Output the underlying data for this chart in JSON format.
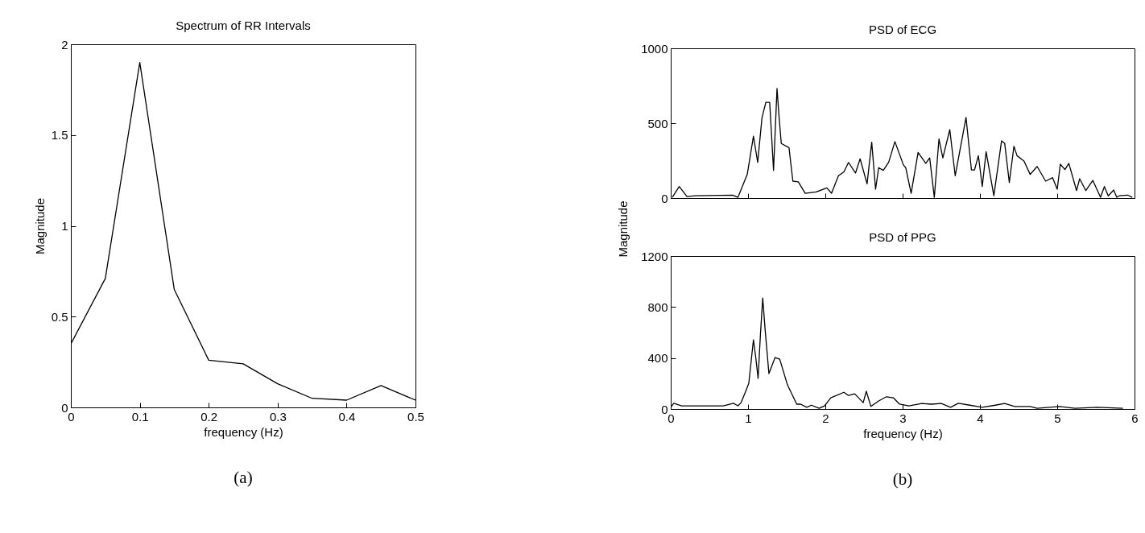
{
  "chart_data": [
    {
      "type": "line",
      "title": "Spectrum of RR Intervals",
      "xlabel": "frequency (Hz)",
      "ylabel": "Magnitude",
      "annotations": [
        "(a)"
      ],
      "x": [
        0,
        0.05,
        0.1,
        0.15,
        0.2,
        0.25,
        0.3,
        0.35,
        0.4,
        0.45,
        0.5
      ],
      "series": [
        {
          "color": "#000000",
          "values": [
            0.35,
            0.71,
            1.9,
            0.65,
            0.26,
            0.24,
            0.13,
            0.05,
            0.04,
            0.12,
            0.04
          ]
        }
      ],
      "xlim": [
        0,
        0.5
      ],
      "xticks": [
        0,
        0.1,
        0.2,
        0.3,
        0.4,
        0.5
      ],
      "ylim": [
        0,
        2
      ],
      "yticks": [
        0,
        0.5,
        1,
        1.5,
        2
      ],
      "grid": false
    },
    {
      "type": "line",
      "title": "PSD of ECG",
      "ylabel": "Magnitude",
      "tick_labels": "y",
      "x": [
        0.02,
        0.11,
        0.21,
        0.32,
        0.8,
        0.87,
        0.99,
        1.07,
        1.125,
        1.18,
        1.23,
        1.28,
        1.33,
        1.375,
        1.4,
        1.43,
        1.53,
        1.58,
        1.65,
        1.74,
        1.88,
        2.02,
        2.08,
        2.17,
        2.24,
        2.3,
        2.39,
        2.45,
        2.54,
        2.6,
        2.65,
        2.69,
        2.75,
        2.82,
        2.9,
        3.01,
        3.04,
        3.11,
        3.2,
        3.3,
        3.35,
        3.41,
        3.47,
        3.52,
        3.61,
        3.68,
        3.82,
        3.89,
        3.93,
        3.98,
        4.03,
        4.08,
        4.18,
        4.28,
        4.32,
        4.38,
        4.44,
        4.48,
        4.57,
        4.65,
        4.74,
        4.85,
        4.94,
        5,
        5.04,
        5.1,
        5.15,
        5.25,
        5.29,
        5.37,
        5.46,
        5.56,
        5.61,
        5.66,
        5.73,
        5.77,
        5.8,
        5.91,
        5.97
      ],
      "series": [
        {
          "color": "#000000",
          "values": [
            5,
            77,
            10,
            15,
            20,
            5,
            158,
            413,
            238,
            534,
            639,
            639,
            185,
            732,
            552,
            364,
            337,
            113,
            108,
            32,
            41,
            68,
            32,
            149,
            175,
            238,
            167,
            262,
            95,
            373,
            59,
            203,
            185,
            240,
            377,
            221,
            203,
            32,
            305,
            232,
            268,
            5,
            394,
            268,
            457,
            149,
            538,
            188,
            188,
            283,
            77,
            310,
            15,
            382,
            366,
            104,
            346,
            283,
            247,
            158,
            211,
            113,
            136,
            59,
            226,
            190,
            232,
            50,
            129,
            50,
            118,
            5,
            77,
            15,
            54,
            5,
            15,
            20,
            5
          ]
        }
      ],
      "xlim": [
        0,
        6
      ],
      "xticks": [
        0,
        1,
        2,
        3,
        4,
        5,
        6
      ],
      "ylim": [
        0,
        1000
      ],
      "yticks": [
        0,
        500,
        1000
      ],
      "grid": false
    },
    {
      "type": "line",
      "title": "PSD of PPG",
      "xlabel": "frequency (Hz)",
      "annotations": [
        "(b)"
      ],
      "x": [
        0,
        0.04,
        0.14,
        0.68,
        0.81,
        0.87,
        0.91,
        0.97,
        1.01,
        1.07,
        1.1,
        1.13,
        1.16,
        1.19,
        1.22,
        1.27,
        1.35,
        1.41,
        1.51,
        1.63,
        1.68,
        1.76,
        1.82,
        1.92,
        1.99,
        2.07,
        2.24,
        2.3,
        2.38,
        2.49,
        2.53,
        2.59,
        2.69,
        2.79,
        2.88,
        2.96,
        3.08,
        3.25,
        3.37,
        3.5,
        3.62,
        3.72,
        3.87,
        3.97,
        4.03,
        4.2,
        4.32,
        4.45,
        4.65,
        4.74,
        5.03,
        5.23,
        5.52,
        5.85
      ],
      "series": [
        {
          "color": "#000000",
          "values": [
            13,
            45,
            25,
            25,
            45,
            25,
            50,
            139,
            202,
            543,
            404,
            240,
            580,
            871,
            631,
            278,
            404,
            391,
            189,
            38,
            38,
            13,
            30,
            5,
            25,
            88,
            131,
            106,
            119,
            50,
            139,
            20,
            63,
            96,
            88,
            38,
            25,
            43,
            38,
            43,
            13,
            45,
            30,
            20,
            13,
            30,
            43,
            20,
            20,
            5,
            20,
            5,
            13,
            5
          ]
        }
      ],
      "xlim": [
        0,
        6
      ],
      "xticks": [
        0,
        1,
        2,
        3,
        4,
        5,
        6
      ],
      "ylim": [
        0,
        1200
      ],
      "yticks": [
        0,
        400,
        800,
        1200
      ],
      "grid": false
    }
  ]
}
